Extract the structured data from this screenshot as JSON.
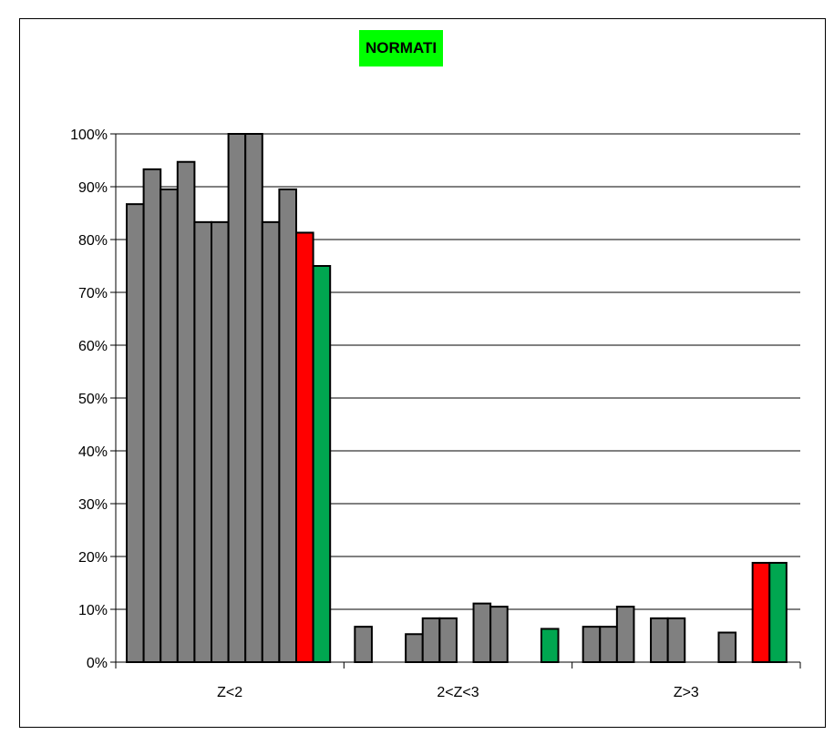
{
  "chart_data": {
    "type": "bar",
    "title": "NORMATI",
    "categories": [
      "Z<2",
      "2<Z<3",
      "Z>3"
    ],
    "y_ticks": [
      "0%",
      "10%",
      "20%",
      "30%",
      "40%",
      "50%",
      "60%",
      "70%",
      "80%",
      "90%",
      "100%"
    ],
    "ylim": [
      0,
      100
    ],
    "y_unit": "%",
    "grid": "horizontal",
    "legend": "none",
    "slots_per_category": 12,
    "colors": {
      "gray": "#808080",
      "red": "#ff0000",
      "green": "#00a650",
      "title_bg": "#00ff00"
    },
    "series": [
      {
        "color": "gray",
        "values": [
          86.7,
          6.7,
          6.7
        ]
      },
      {
        "color": "gray",
        "values": [
          93.3,
          0,
          6.7
        ]
      },
      {
        "color": "gray",
        "values": [
          89.5,
          0,
          10.5
        ]
      },
      {
        "color": "gray",
        "values": [
          94.7,
          5.3,
          0
        ]
      },
      {
        "color": "gray",
        "values": [
          83.3,
          8.3,
          8.3
        ]
      },
      {
        "color": "gray",
        "values": [
          83.3,
          8.3,
          8.3
        ]
      },
      {
        "color": "gray",
        "values": [
          100,
          0,
          0
        ]
      },
      {
        "color": "gray",
        "values": [
          100,
          11.1,
          0
        ]
      },
      {
        "color": "gray",
        "values": [
          83.3,
          10.5,
          5.6
        ]
      },
      {
        "color": "gray",
        "values": [
          89.5,
          0,
          0
        ]
      },
      {
        "color": "red",
        "values": [
          81.3,
          0,
          18.8
        ]
      },
      {
        "color": "green",
        "values": [
          75,
          6.3,
          18.8
        ]
      }
    ]
  }
}
